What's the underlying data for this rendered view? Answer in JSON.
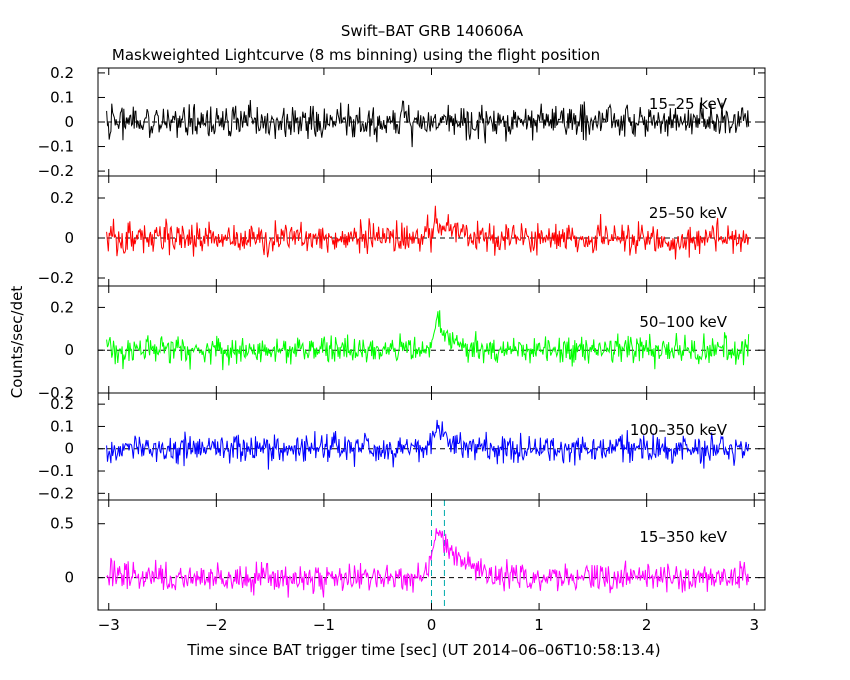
{
  "title": "Swift–BAT GRB 140606A",
  "subtitle": "Maskweighted Lightcurve (8 ms binning) using the flight position",
  "chart_data": {
    "type": "line",
    "title": "Swift–BAT GRB 140606A",
    "subtitle": "Maskweighted Lightcurve (8 ms binning) using the flight position",
    "xlabel": "Time since BAT trigger time [sec] (UT 2014–06–06T10:58:13.4)",
    "ylabel": "Counts/sec/det",
    "xlim": [
      -3.1,
      3.1
    ],
    "x_ticks": [
      -3,
      -2,
      -1,
      0,
      1,
      2,
      3
    ],
    "x_tick_labels": [
      "−3",
      "−2",
      "−1",
      "0",
      "1",
      "2",
      "3"
    ],
    "binning_sec": 0.008,
    "data_range_sec": [
      -3.02,
      2.95
    ],
    "trigger_marker_sec": 0.0,
    "second_marker_sec": 0.12,
    "panels": [
      {
        "name": "15–25 keV",
        "color": "#000000",
        "ylim": [
          -0.22,
          0.22
        ],
        "y_ticks": [
          0.2,
          0.1,
          0,
          -0.1,
          -0.2
        ],
        "y_tick_labels": [
          "0.2",
          "0.1",
          "0",
          "−0.1",
          "−0.2"
        ],
        "noise_amplitude": 0.06,
        "pulse": {
          "peak_time": 0.06,
          "rise": 0.04,
          "decay": 0.15,
          "amplitude": 0.0
        }
      },
      {
        "name": "25–50 keV",
        "color": "#ff0000",
        "ylim": [
          -0.24,
          0.31
        ],
        "y_ticks": [
          0.2,
          0,
          -0.2
        ],
        "y_tick_labels": [
          "0.2",
          "0",
          "−0.2"
        ],
        "noise_amplitude": 0.07,
        "pulse": {
          "peak_time": 0.06,
          "rise": 0.05,
          "decay": 0.2,
          "amplitude": 0.08
        }
      },
      {
        "name": "50–100 keV",
        "color": "#00ff00",
        "ylim": [
          -0.2,
          0.3
        ],
        "y_ticks": [
          0.2,
          0,
          -0.2
        ],
        "y_tick_labels": [
          "0.2",
          "0",
          "−0.2"
        ],
        "noise_amplitude": 0.06,
        "pulse": {
          "peak_time": 0.06,
          "rise": 0.04,
          "decay": 0.12,
          "amplitude": 0.14
        }
      },
      {
        "name": "100–350 keV",
        "color": "#0000ff",
        "ylim": [
          -0.23,
          0.25
        ],
        "y_ticks": [
          0.2,
          0.1,
          0,
          -0.1,
          -0.2
        ],
        "y_tick_labels": [
          "0.2",
          "0.1",
          "0",
          "−0.1",
          "−0.2"
        ],
        "noise_amplitude": 0.06,
        "pulse": {
          "peak_time": 0.08,
          "rise": 0.04,
          "decay": 0.1,
          "amplitude": 0.1
        }
      },
      {
        "name": "15–350 keV",
        "color": "#ff00ff",
        "ylim": [
          -0.3,
          0.72
        ],
        "y_ticks": [
          0.5,
          0
        ],
        "y_tick_labels": [
          "0.5",
          "0"
        ],
        "noise_amplitude": 0.12,
        "pulse": {
          "peak_time": 0.06,
          "rise": 0.05,
          "decay": 0.2,
          "amplitude": 0.45
        }
      }
    ]
  }
}
